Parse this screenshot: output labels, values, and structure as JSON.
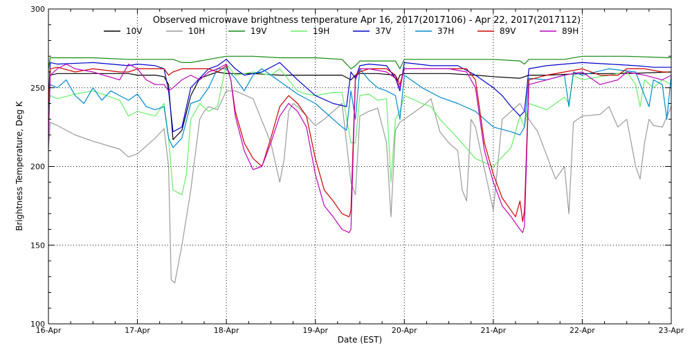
{
  "chart_data": {
    "type": "line",
    "title": "Observed microwave brightness temperature Apr 16, 2017(2017106) - Apr 22, 2017(2017112)",
    "xlabel": "Date (EST)",
    "ylabel": "Brightness Temperature, Deg K",
    "xlim": [
      0,
      7
    ],
    "ylim": [
      100,
      300
    ],
    "yticks": [
      100,
      150,
      200,
      250,
      300
    ],
    "xticks": [
      0,
      1,
      2,
      3,
      4,
      5,
      6,
      7
    ],
    "xtick_labels": [
      "16-Apr",
      "17-Apr",
      "18-Apr",
      "19-Apr",
      "20-Apr",
      "21-Apr",
      "22-Apr",
      "23-Apr"
    ],
    "grid": true,
    "legend_position": "top",
    "series": [
      {
        "name": "10V",
        "color": "#000000",
        "x": [
          0,
          0.02,
          0.1,
          0.5,
          0.9,
          1.0,
          1.2,
          1.3,
          1.35,
          1.4,
          1.5,
          1.6,
          1.7,
          1.8,
          1.9,
          2.0,
          2.3,
          2.6,
          3.0,
          3.3,
          3.4,
          3.45,
          3.5,
          3.7,
          3.9,
          3.92,
          3.95,
          4.0,
          4.5,
          4.8,
          5.0,
          5.3,
          5.4,
          5.6,
          6.0,
          6.5,
          7.0
        ],
        "y": [
          240,
          258,
          259,
          259,
          259,
          258,
          258,
          257,
          252,
          217,
          223,
          245,
          256,
          258,
          260,
          259,
          259,
          258,
          258,
          258,
          255,
          258,
          259,
          259,
          258,
          254,
          258,
          259,
          259,
          258,
          257,
          256,
          258,
          258,
          259,
          259,
          260
        ]
      },
      {
        "name": "10H",
        "color": "#9a9a9a",
        "x": [
          0,
          0.02,
          0.1,
          0.3,
          0.5,
          0.8,
          0.9,
          1.0,
          1.1,
          1.2,
          1.3,
          1.35,
          1.38,
          1.42,
          1.45,
          1.5,
          1.6,
          1.7,
          1.75,
          1.8,
          1.9,
          2.0,
          2.1,
          2.3,
          2.5,
          2.6,
          2.65,
          2.7,
          2.75,
          2.8,
          2.9,
          3.0,
          3.1,
          3.3,
          3.4,
          3.45,
          3.5,
          3.6,
          3.7,
          3.8,
          3.85,
          3.9,
          3.95,
          4.0,
          4.2,
          4.3,
          4.4,
          4.5,
          4.6,
          4.65,
          4.7,
          4.75,
          4.8,
          5.0,
          5.1,
          5.2,
          5.3,
          5.4,
          5.5,
          5.7,
          5.8,
          5.85,
          5.9,
          6.0,
          6.2,
          6.3,
          6.4,
          6.5,
          6.6,
          6.65,
          6.7,
          6.75,
          6.8,
          6.9,
          7.0
        ],
        "y": [
          210,
          228,
          226,
          220,
          216,
          211,
          206,
          208,
          213,
          218,
          224,
          200,
          128,
          126,
          135,
          150,
          185,
          230,
          235,
          238,
          236,
          248,
          248,
          243,
          215,
          190,
          205,
          235,
          240,
          238,
          232,
          226,
          230,
          240,
          190,
          182,
          232,
          235,
          237,
          215,
          168,
          223,
          228,
          230,
          238,
          243,
          222,
          215,
          210,
          185,
          178,
          230,
          225,
          172,
          230,
          235,
          240,
          230,
          222,
          192,
          200,
          170,
          228,
          232,
          233,
          238,
          225,
          230,
          200,
          192,
          215,
          230,
          226,
          225,
          238
        ]
      },
      {
        "name": "19V",
        "color": "#118811",
        "x": [
          0,
          0.02,
          0.1,
          0.5,
          0.9,
          1.0,
          1.3,
          1.4,
          1.5,
          1.6,
          1.8,
          2.0,
          2.3,
          2.6,
          3.0,
          3.3,
          3.4,
          3.45,
          3.5,
          3.8,
          3.9,
          3.95,
          4.0,
          4.5,
          4.9,
          5.0,
          5.3,
          5.35,
          5.4,
          5.8,
          6.0,
          6.5,
          7.0
        ],
        "y": [
          262,
          269,
          269,
          269,
          268,
          268,
          268,
          268,
          266,
          266,
          268,
          270,
          270,
          269,
          269,
          268,
          262,
          264,
          267,
          267,
          267,
          262,
          268,
          268,
          268,
          268,
          267,
          265,
          268,
          268,
          270,
          270,
          269
        ]
      },
      {
        "name": "19H",
        "color": "#66ee66",
        "x": [
          0,
          0.02,
          0.1,
          0.3,
          0.5,
          0.8,
          0.9,
          1.0,
          1.2,
          1.3,
          1.35,
          1.4,
          1.5,
          1.55,
          1.6,
          1.7,
          1.8,
          1.9,
          2.0,
          2.1,
          2.3,
          2.5,
          2.6,
          2.7,
          2.8,
          2.9,
          3.0,
          3.2,
          3.3,
          3.4,
          3.45,
          3.5,
          3.6,
          3.7,
          3.8,
          3.85,
          3.9,
          3.95,
          4.0,
          4.2,
          4.3,
          4.4,
          4.6,
          4.8,
          5.0,
          5.2,
          5.3,
          5.35,
          5.4,
          5.6,
          5.8,
          5.85,
          5.9,
          6.0,
          6.3,
          6.5,
          6.6,
          6.65,
          6.7,
          6.8,
          6.9,
          7.0
        ],
        "y": [
          240,
          245,
          243,
          246,
          248,
          242,
          232,
          235,
          232,
          240,
          218,
          185,
          182,
          195,
          230,
          240,
          235,
          238,
          265,
          258,
          260,
          258,
          262,
          255,
          248,
          246,
          245,
          247,
          247,
          215,
          215,
          245,
          246,
          242,
          243,
          190,
          230,
          235,
          245,
          240,
          238,
          230,
          218,
          205,
          200,
          212,
          232,
          225,
          240,
          236,
          244,
          240,
          258,
          255,
          258,
          260,
          252,
          238,
          255,
          250,
          255,
          252
        ]
      },
      {
        "name": "37V",
        "color": "#0000cc",
        "x": [
          0,
          0.02,
          0.1,
          0.5,
          0.9,
          1.0,
          1.2,
          1.3,
          1.35,
          1.4,
          1.5,
          1.6,
          1.8,
          1.9,
          2.0,
          2.1,
          2.2,
          2.4,
          2.6,
          2.8,
          3.0,
          3.2,
          3.35,
          3.4,
          3.45,
          3.5,
          3.6,
          3.8,
          3.9,
          3.95,
          4.0,
          4.3,
          4.6,
          4.8,
          5.0,
          5.1,
          5.2,
          5.3,
          5.35,
          5.4,
          5.6,
          6.0,
          6.3,
          6.6,
          6.8,
          7.0
        ],
        "y": [
          240,
          266,
          265,
          266,
          264,
          265,
          264,
          262,
          248,
          222,
          225,
          250,
          262,
          264,
          268,
          262,
          258,
          260,
          266,
          255,
          245,
          240,
          238,
          260,
          256,
          264,
          265,
          264,
          256,
          248,
          266,
          264,
          264,
          258,
          250,
          245,
          238,
          232,
          235,
          262,
          264,
          266,
          265,
          264,
          263,
          263
        ]
      },
      {
        "name": "37H",
        "color": "#0088cc",
        "x": [
          0,
          0.02,
          0.1,
          0.2,
          0.3,
          0.4,
          0.5,
          0.6,
          0.7,
          0.8,
          0.9,
          1.0,
          1.1,
          1.2,
          1.3,
          1.35,
          1.4,
          1.5,
          1.6,
          1.7,
          1.8,
          1.9,
          2.0,
          2.1,
          2.2,
          2.3,
          2.4,
          2.5,
          2.6,
          2.7,
          2.8,
          3.0,
          3.2,
          3.3,
          3.35,
          3.4,
          3.45,
          3.5,
          3.6,
          3.7,
          3.8,
          3.9,
          3.95,
          4.0,
          4.2,
          4.4,
          4.6,
          4.8,
          5.0,
          5.2,
          5.3,
          5.35,
          5.4,
          5.6,
          5.8,
          5.85,
          5.9,
          6.0,
          6.3,
          6.6,
          6.7,
          6.75,
          6.8,
          6.9,
          6.95,
          7.0
        ],
        "y": [
          235,
          252,
          250,
          255,
          245,
          240,
          250,
          242,
          248,
          245,
          242,
          246,
          238,
          236,
          238,
          218,
          212,
          218,
          240,
          242,
          250,
          262,
          262,
          256,
          248,
          258,
          262,
          258,
          254,
          250,
          246,
          240,
          230,
          225,
          223,
          248,
          230,
          262,
          255,
          250,
          248,
          245,
          230,
          258,
          250,
          244,
          240,
          235,
          225,
          222,
          220,
          225,
          256,
          255,
          258,
          238,
          260,
          258,
          262,
          260,
          245,
          238,
          255,
          252,
          230,
          258
        ]
      },
      {
        "name": "89V",
        "color": "#cc0000",
        "x": [
          0,
          0.02,
          0.1,
          0.3,
          0.5,
          0.8,
          0.9,
          1.0,
          1.2,
          1.3,
          1.35,
          1.4,
          1.5,
          1.7,
          1.8,
          1.9,
          2.0,
          2.05,
          2.1,
          2.2,
          2.3,
          2.4,
          2.5,
          2.6,
          2.7,
          2.8,
          2.9,
          3.0,
          3.1,
          3.2,
          3.3,
          3.38,
          3.4,
          3.45,
          3.5,
          3.6,
          3.8,
          3.9,
          3.95,
          4.0,
          4.3,
          4.5,
          4.7,
          4.8,
          4.9,
          5.0,
          5.1,
          5.2,
          5.25,
          5.3,
          5.33,
          5.35,
          5.4,
          5.6,
          5.8,
          6.0,
          6.2,
          6.4,
          6.5,
          6.7,
          6.9,
          7.0
        ],
        "y": [
          238,
          262,
          263,
          260,
          262,
          260,
          260,
          262,
          262,
          262,
          258,
          260,
          262,
          262,
          262,
          260,
          264,
          255,
          235,
          215,
          205,
          200,
          218,
          238,
          245,
          240,
          232,
          205,
          185,
          178,
          170,
          168,
          172,
          258,
          260,
          262,
          262,
          258,
          252,
          262,
          262,
          262,
          262,
          255,
          215,
          195,
          180,
          172,
          168,
          178,
          165,
          172,
          255,
          258,
          260,
          262,
          258,
          258,
          262,
          262,
          260,
          260
        ]
      },
      {
        "name": "89H",
        "color": "#bb00bb",
        "x": [
          0,
          0.02,
          0.1,
          0.2,
          0.3,
          0.5,
          0.8,
          0.9,
          1.0,
          1.1,
          1.2,
          1.3,
          1.35,
          1.4,
          1.5,
          1.6,
          1.7,
          1.8,
          1.9,
          2.0,
          2.05,
          2.1,
          2.2,
          2.3,
          2.4,
          2.5,
          2.6,
          2.7,
          2.8,
          2.9,
          3.0,
          3.1,
          3.2,
          3.3,
          3.38,
          3.4,
          3.45,
          3.5,
          3.6,
          3.8,
          3.9,
          3.95,
          4.0,
          4.3,
          4.5,
          4.7,
          4.8,
          4.9,
          5.0,
          5.1,
          5.2,
          5.3,
          5.33,
          5.35,
          5.4,
          5.6,
          5.8,
          6.0,
          6.2,
          6.4,
          6.5,
          6.7,
          6.9,
          7.0
        ],
        "y": [
          215,
          258,
          262,
          265,
          262,
          260,
          255,
          265,
          262,
          255,
          252,
          252,
          248,
          250,
          255,
          258,
          255,
          260,
          262,
          265,
          255,
          232,
          210,
          198,
          200,
          215,
          232,
          240,
          235,
          225,
          195,
          175,
          168,
          160,
          158,
          160,
          255,
          262,
          262,
          260,
          256,
          250,
          262,
          262,
          262,
          260,
          250,
          210,
          190,
          175,
          168,
          160,
          158,
          162,
          252,
          255,
          258,
          260,
          252,
          255,
          260,
          258,
          255,
          258
        ]
      }
    ]
  }
}
